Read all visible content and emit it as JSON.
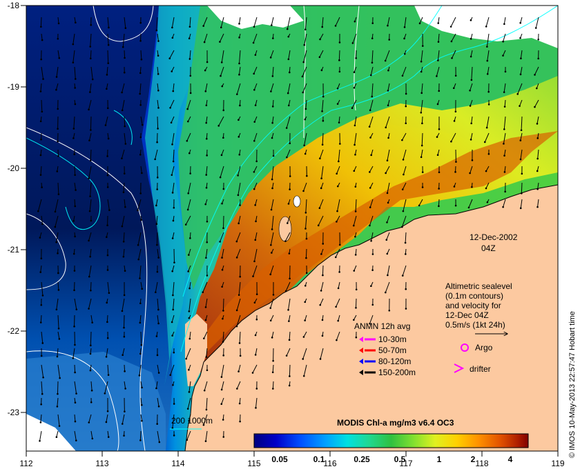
{
  "map": {
    "lon_ticks": [
      "112",
      "113",
      "114",
      "115",
      "116",
      "117",
      "118",
      "119"
    ],
    "lat_ticks": [
      "-18",
      "-19",
      "-20",
      "-21",
      "-22",
      "-23"
    ],
    "date_label": "12-Dec-2002",
    "time_label": "04Z",
    "altimetry_note": [
      "Altimetric sealevel",
      "(0.1m contours)",
      "and velocity for",
      "12-Dec 04Z",
      "0.5m/s (1kt 24h)"
    ],
    "anmn_title": "ANMN 12h avg",
    "anmn_legend": [
      {
        "label": "10-30m",
        "color": "#ff00ff"
      },
      {
        "label": "50-70m",
        "color": "#ff0000"
      },
      {
        "label": "80-120m",
        "color": "#0000ff"
      },
      {
        "label": "150-200m",
        "color": "#000000"
      }
    ],
    "argo_label": "Argo",
    "argo_color": "#ff00ff",
    "drifter_label": "drifter",
    "drifter_color": "#ff00ff",
    "isobath_label": "200  1000m",
    "isobath_color": "#00ffff",
    "land_color": "#fcc9a0",
    "colorbar": {
      "title": "MODIS Chl-a mg/m3 v6.4 OC3",
      "labels": [
        "0.05",
        "0.1",
        "0.25",
        "0.5",
        "1",
        "2",
        "4"
      ],
      "colors": [
        "#00007f",
        "#0000c8",
        "#0050ff",
        "#00a0ff",
        "#00e0e0",
        "#20d890",
        "#30c040",
        "#80e030",
        "#e0f020",
        "#ffd000",
        "#ff9000",
        "#e05000",
        "#b02000",
        "#800000"
      ]
    },
    "credit": "© IMOS 10-May-2013 22:57:47 Hobart time"
  }
}
